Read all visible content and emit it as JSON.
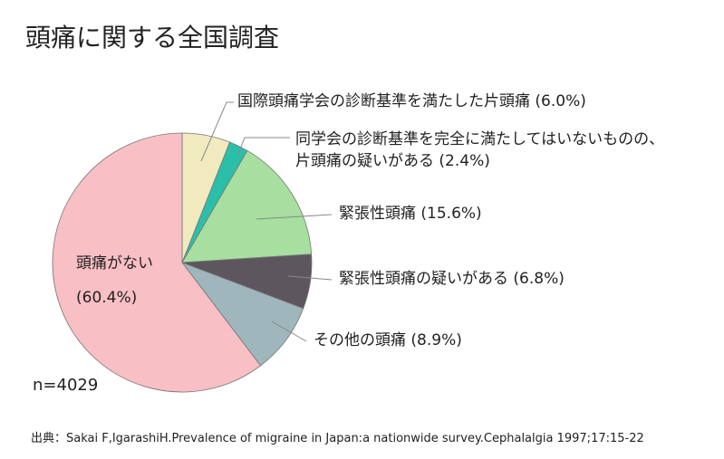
{
  "chart_data": {
    "type": "pie",
    "title": "頭痛に関する全国調査",
    "categories": [
      "国際頭痛学会の診断基準を満たした片頭痛",
      "同学会の診断基準を完全に満たしてはいないものの、\n片頭痛の疑いがある",
      "緊張性頭痛",
      "緊張性頭痛の疑いがある",
      "その他の頭痛",
      "頭痛がない"
    ],
    "values": [
      6.0,
      2.4,
      15.6,
      6.8,
      8.9,
      60.4
    ],
    "value_labels": [
      "(6.0%)",
      "(2.4%)",
      "(15.6%)",
      "(6.8%)",
      "(8.9%)",
      "(60.4%)"
    ],
    "colors": [
      "#f1eabf",
      "#2bbfa9",
      "#a6df9f",
      "#5e565e",
      "#9fb6bd",
      "#f8bfc4"
    ],
    "note": "n=4029",
    "source": "出典：Sakai F,IgarashiH.Prevalence of migraine in Japan:a nationwide survey.Cephalalgia 1997;17:15-22"
  }
}
